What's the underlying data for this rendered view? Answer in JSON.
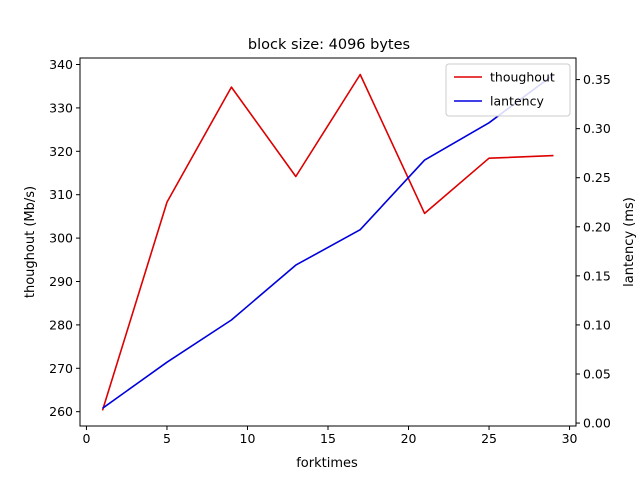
{
  "chart_data": {
    "type": "line",
    "title": "block size: 4096 bytes",
    "xlabel": "forktimes",
    "ylabel_left": "thoughout (Mb/s)",
    "ylabel_right": "lantency (ms)",
    "xlim": [
      -0.4,
      30.4
    ],
    "ylim_left": [
      256.7,
      341.5
    ],
    "ylim_right": [
      -0.003,
      0.372
    ],
    "xticks": [
      0,
      5,
      10,
      15,
      20,
      25,
      30
    ],
    "yticks_left": [
      260,
      270,
      280,
      290,
      300,
      310,
      320,
      330,
      340
    ],
    "yticks_right": [
      "0.00",
      "0.05",
      "0.10",
      "0.15",
      "0.20",
      "0.25",
      "0.30",
      "0.35"
    ],
    "x": [
      1,
      5,
      9,
      13,
      17,
      21,
      25,
      29
    ],
    "series": [
      {
        "name": "thoughout",
        "axis": "left",
        "color": "#dd0000",
        "values": [
          260.3,
          308.3,
          334.8,
          314.2,
          337.7,
          305.7,
          318.4,
          319.0
        ]
      },
      {
        "name": "lantency",
        "axis": "right",
        "color": "#0000dd",
        "values": [
          0.015,
          0.062,
          0.105,
          0.161,
          0.197,
          0.268,
          0.306,
          0.355
        ]
      }
    ],
    "legend_position": "top-right",
    "grid": false
  }
}
